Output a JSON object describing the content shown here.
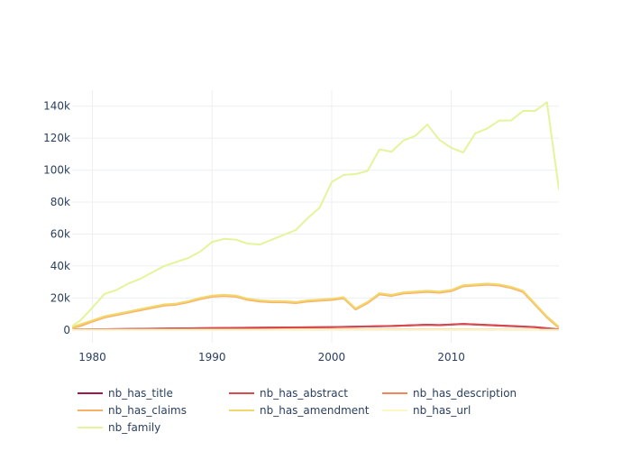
{
  "chart_data": {
    "type": "line",
    "title": "",
    "xlabel": "",
    "ylabel": "",
    "xlim": [
      1978.3,
      2019
    ],
    "ylim": [
      -8000,
      150000
    ],
    "x_ticks": [
      1980,
      1990,
      2000,
      2010
    ],
    "y_ticks": [
      0,
      20000,
      40000,
      60000,
      80000,
      100000,
      120000,
      140000
    ],
    "y_tick_labels": [
      "0",
      "20k",
      "40k",
      "60k",
      "80k",
      "100k",
      "120k",
      "140k"
    ],
    "grid": true,
    "legend_position": "bottom",
    "series": [
      {
        "name": "nb_has_title",
        "color": "#a3174f",
        "x": [
          1978,
          1980,
          1985,
          1990,
          1995,
          2000,
          2005,
          2008,
          2009,
          2011,
          2015,
          2017,
          2019
        ],
        "y": [
          300,
          400,
          800,
          1200,
          1500,
          1800,
          2500,
          3300,
          3100,
          3800,
          2500,
          1800,
          400
        ]
      },
      {
        "name": "nb_has_abstract",
        "color": "#d94a4a",
        "x": [
          1978,
          1980,
          1985,
          1990,
          1995,
          2000,
          2005,
          2008,
          2009,
          2011,
          2015,
          2017,
          2019
        ],
        "y": [
          250,
          350,
          750,
          1150,
          1450,
          1750,
          2450,
          3200,
          3000,
          3700,
          2400,
          1700,
          350
        ]
      },
      {
        "name": "nb_has_description",
        "color": "#f5845a",
        "x": [
          1978,
          1990,
          2000,
          2010,
          2019
        ],
        "y": [
          200,
          250,
          300,
          350,
          100
        ]
      },
      {
        "name": "nb_has_claims",
        "color": "#fbb067",
        "x": [
          1978,
          1979,
          1980,
          1981,
          1982,
          1983,
          1984,
          1985,
          1986,
          1987,
          1988,
          1989,
          1990,
          1991,
          1992,
          1993,
          1994,
          1995,
          1996,
          1997,
          1998,
          1999,
          2000,
          2001,
          2002,
          2003,
          2004,
          2005,
          2006,
          2007,
          2008,
          2009,
          2010,
          2011,
          2012,
          2013,
          2014,
          2015,
          2016,
          2017,
          2018,
          2019
        ],
        "y": [
          500,
          2500,
          5200,
          7800,
          9300,
          10800,
          12300,
          13800,
          15300,
          15800,
          17300,
          19300,
          20800,
          21300,
          20800,
          18800,
          17800,
          17300,
          17300,
          16800,
          17800,
          18300,
          18800,
          19800,
          12800,
          16800,
          22300,
          21300,
          22800,
          23300,
          23800,
          23300,
          24300,
          27300,
          27800,
          28300,
          27800,
          26300,
          23800,
          15800,
          7800,
          1300
        ]
      },
      {
        "name": "nb_has_amendment",
        "color": "#f2d86b",
        "x": [
          1978,
          1979,
          1980,
          1981,
          1982,
          1983,
          1984,
          1985,
          1986,
          1987,
          1988,
          1989,
          1990,
          1991,
          1992,
          1993,
          1994,
          1995,
          1996,
          1997,
          1998,
          1999,
          2000,
          2001,
          2002,
          2003,
          2004,
          2005,
          2006,
          2007,
          2008,
          2009,
          2010,
          2011,
          2012,
          2013,
          2014,
          2015,
          2016,
          2017,
          2018,
          2019
        ],
        "y": [
          1000,
          3500,
          6000,
          8500,
          10000,
          11500,
          13000,
          14500,
          16000,
          16500,
          18000,
          20000,
          21500,
          22000,
          21500,
          19500,
          18500,
          18000,
          18000,
          17500,
          18500,
          19000,
          19500,
          20500,
          13500,
          17500,
          23000,
          22000,
          23500,
          24000,
          24500,
          24000,
          25000,
          28000,
          28500,
          29000,
          28500,
          27000,
          24500,
          16500,
          8500,
          2000
        ]
      },
      {
        "name": "nb_has_url",
        "color": "#fdf7c4",
        "x": [
          1978,
          1990,
          2000,
          2010,
          2019
        ],
        "y": [
          100,
          120,
          150,
          200,
          50
        ]
      },
      {
        "name": "nb_family",
        "color": "#e3f59a",
        "x": [
          1978,
          1979,
          1980,
          1981,
          1982,
          1983,
          1984,
          1985,
          1986,
          1987,
          1988,
          1989,
          1990,
          1991,
          1992,
          1993,
          1994,
          1995,
          1996,
          1997,
          1998,
          1999,
          2000,
          2001,
          2002,
          2003,
          2004,
          2005,
          2006,
          2007,
          2008,
          2009,
          2010,
          2011,
          2012,
          2013,
          2014,
          2015,
          2016,
          2017,
          2018,
          2019
        ],
        "y": [
          1000,
          6000,
          14000,
          22500,
          25000,
          29000,
          32000,
          36000,
          40000,
          42500,
          45000,
          49000,
          55000,
          57000,
          56500,
          54000,
          53500,
          56500,
          59500,
          62500,
          70000,
          76500,
          92500,
          97000,
          97500,
          99500,
          113000,
          111500,
          118500,
          121500,
          128500,
          119000,
          114000,
          111000,
          123000,
          126000,
          131000,
          131000,
          137000,
          137000,
          142500,
          88000
        ]
      }
    ]
  }
}
